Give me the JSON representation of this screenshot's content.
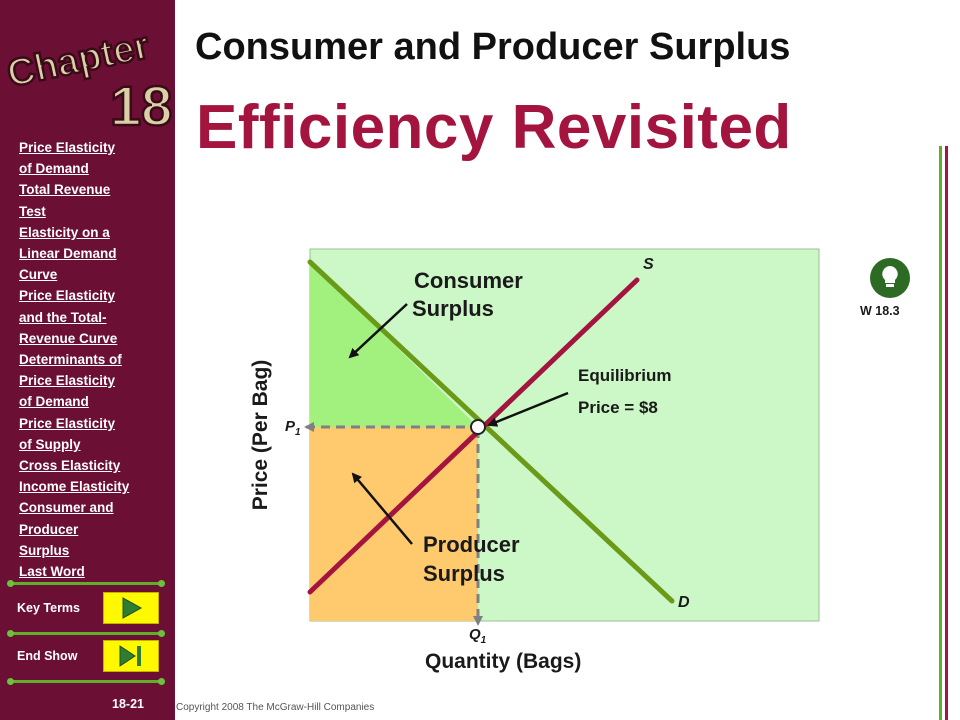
{
  "sidebar": {
    "logo_text": "Chapter",
    "logo_number": "18",
    "nav_items": [
      "Price Elasticity",
      "of Demand",
      "Total Revenue",
      "Test",
      "Elasticity on a",
      "Linear Demand",
      "Curve",
      "Price Elasticity",
      "and the Total-",
      "Revenue Curve",
      "Determinants of",
      "Price Elasticity",
      "of Demand",
      "Price Elasticity",
      "of Supply",
      "Cross Elasticity",
      "Income Elasticity",
      "Consumer and",
      "Producer",
      "Surplus",
      "Last Word"
    ],
    "key_terms_label": "Key Terms",
    "end_show_label": "End Show",
    "slide_number": "18-21"
  },
  "header": {
    "title": "Consumer and Producer Surplus",
    "subtitle": "Efficiency Revisited"
  },
  "graph": {
    "y_axis_label": "Price (Per Bag)",
    "x_axis_label": "Quantity (Bags)",
    "supply_label": "S",
    "demand_label": "D",
    "p1_label": "P",
    "p1_sub": "1",
    "q1_label": "Q",
    "q1_sub": "1",
    "consumer_surplus_label_1": "Consumer",
    "consumer_surplus_label_2": "Surplus",
    "producer_surplus_label_1": "Producer",
    "producer_surplus_label_2": "Surplus",
    "equilibrium_label_1": "Equilibrium",
    "equilibrium_label_2": "Price = $8",
    "web_link_label": "W 18.3",
    "colors": {
      "plot_bg": "#ccf7c7",
      "consumer_surplus": "#a2f07e",
      "producer_surplus": "#ffc96d",
      "supply": "#a3143f",
      "demand": "#6a9a18"
    }
  },
  "footer": {
    "copyright": "Copyright 2008 The McGraw-Hill Companies"
  }
}
